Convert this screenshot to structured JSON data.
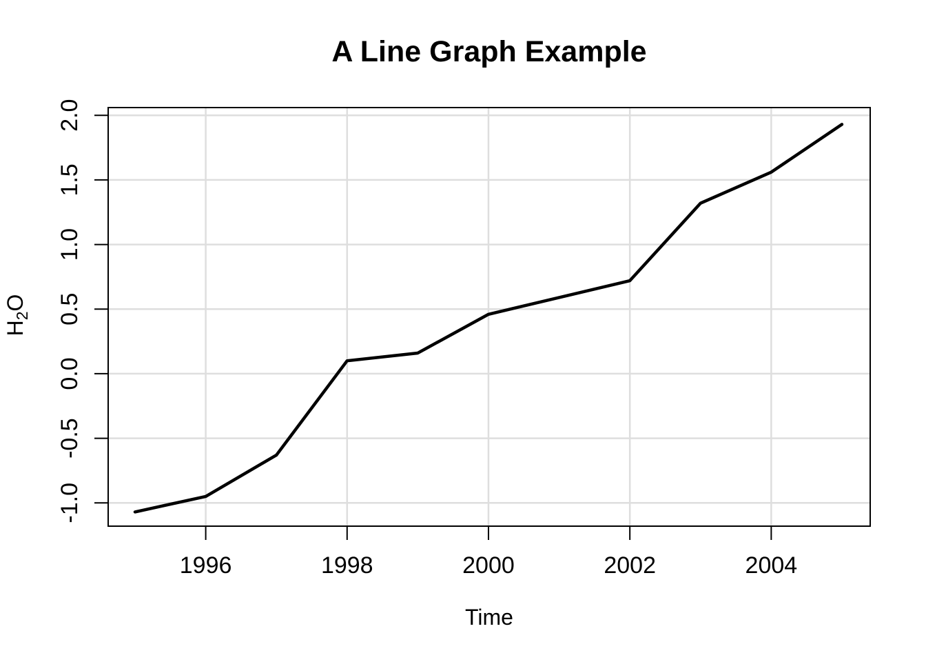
{
  "chart_data": {
    "type": "line",
    "title": "A Line Graph Example",
    "xlabel": "Time",
    "ylabel": "H₂O",
    "ylabel_parts": [
      {
        "text": "H",
        "subscript": false
      },
      {
        "text": "2",
        "subscript": true
      },
      {
        "text": "O",
        "subscript": false
      }
    ],
    "x": [
      1995,
      1996,
      1997,
      1998,
      1999,
      2000,
      2001,
      2002,
      2003,
      2004,
      2005
    ],
    "y": [
      -1.07,
      -0.95,
      -0.63,
      0.1,
      0.16,
      0.46,
      0.59,
      0.72,
      1.32,
      1.56,
      1.93
    ],
    "x_ticks": [
      1996,
      1998,
      2000,
      2002,
      2004
    ],
    "x_tick_labels": [
      "1996",
      "1998",
      "2000",
      "2002",
      "2004"
    ],
    "y_ticks": [
      -1.0,
      -0.5,
      0.0,
      0.5,
      1.0,
      1.5,
      2.0
    ],
    "y_tick_labels": [
      "-1.0",
      "-0.5",
      "0.0",
      "0.5",
      "1.0",
      "1.5",
      "2.0"
    ],
    "xlim": [
      1994.62,
      2005.4
    ],
    "ylim": [
      -1.18,
      2.06
    ],
    "grid": true,
    "legend": false,
    "colors": {
      "line": "#000000",
      "grid": "#dedede",
      "axis": "#000000",
      "text": "#000000",
      "background": "#ffffff"
    }
  }
}
